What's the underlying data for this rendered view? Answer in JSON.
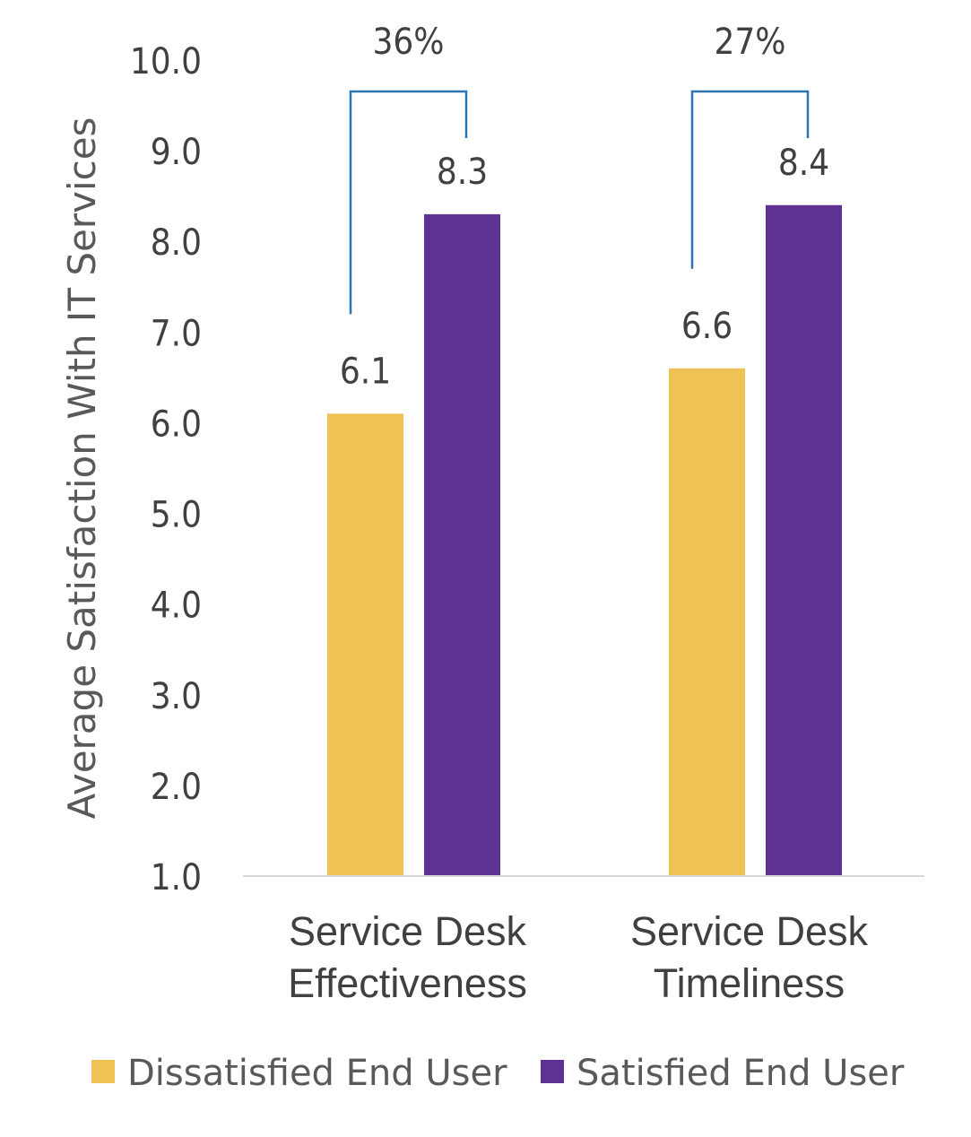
{
  "chart_data": {
    "type": "bar",
    "title": "",
    "xlabel": "",
    "ylabel": "Average Satisfaction With IT Services",
    "ylim": [
      1.0,
      10.0
    ],
    "yticks": [
      "1.0",
      "2.0",
      "3.0",
      "4.0",
      "5.0",
      "6.0",
      "7.0",
      "8.0",
      "9.0",
      "10.0"
    ],
    "categories": [
      [
        "Service Desk",
        "Effectiveness"
      ],
      [
        "Service Desk",
        "Timeliness"
      ]
    ],
    "series": [
      {
        "name": "Dissatisfied End User",
        "color": "#EFC353",
        "values": [
          6.1,
          6.6
        ]
      },
      {
        "name": "Satisfied End User",
        "color": "#5E3292",
        "values": [
          8.3,
          8.4
        ]
      }
    ],
    "annotations": [
      {
        "category": 0,
        "text": "36%"
      },
      {
        "category": 1,
        "text": "27%"
      }
    ],
    "bracket_color": "#2E75B6",
    "grid": false,
    "legend_position": "bottom"
  }
}
